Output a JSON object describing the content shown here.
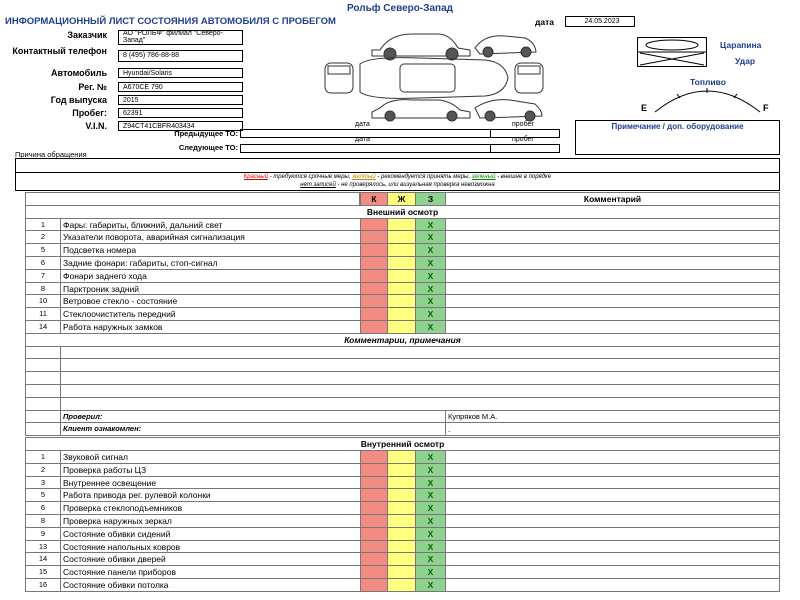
{
  "header": {
    "company": "Рольф Северо-Запад",
    "title": "ИНФОРМАЦИОННЫЙ ЛИСТ СОСТОЯНИЯ АВТОМОБИЛЯ С ПРОБЕГОМ",
    "date_label": "дата",
    "date": "24.05.2023"
  },
  "fields": [
    {
      "label": "Заказчик",
      "value": "АО \"РОЛЬФ\" филиал \"Северо-Запад\""
    },
    {
      "label": "Контактный телефон",
      "value": "8 (495) 786-88-88"
    },
    {
      "label": "Автомобиль",
      "value": "Hyundai/Solaris"
    },
    {
      "label": "Рег. №",
      "value": "А670СЕ 790"
    },
    {
      "label": "Год выпуска",
      "value": "2015"
    },
    {
      "label": "Пробег:",
      "value": "62391"
    },
    {
      "label": "V.I.N.",
      "value": "Z94CT41CBFR403434"
    }
  ],
  "service": {
    "prev_label": "Предыдущее ТО:",
    "next_label": "Следующее ТО:",
    "date_label": "дата",
    "mileage_label": "пробег"
  },
  "damage_legend": {
    "scratch": "Царапина",
    "dent": "Удар"
  },
  "fuel": {
    "label": "Топливо",
    "empty": "E",
    "full": "F"
  },
  "note_label": "Примечание / доп. оборудование",
  "reason_label": "Причина обращения",
  "legend": {
    "red": "Красный",
    "red_text": " - требуются срочные меры, ",
    "yellow": "желтый",
    "yellow_text": " - рекомендуется принять меры, ",
    "green": "зеленый",
    "green_text": " - внешне в порядке",
    "none": "нет записей",
    "none_text": " - не проверялось, или визуальная проверка невозможна"
  },
  "table": {
    "columns": [
      "К",
      "Ж",
      "З",
      "Комментарий"
    ],
    "exterior": {
      "title": "Внешний осмотр",
      "rows": [
        {
          "num": "1",
          "name": "Фары: габариты, ближний, дальний свет",
          "mark": "X"
        },
        {
          "num": "2",
          "name": "Указатели поворота, аварийная сигнализация",
          "mark": "X"
        },
        {
          "num": "5",
          "name": "Подсветка номера",
          "mark": "X"
        },
        {
          "num": "6",
          "name": "Задние фонари: габариты, стоп-сигнал",
          "mark": "X"
        },
        {
          "num": "7",
          "name": "Фонари заднего хода",
          "mark": "X"
        },
        {
          "num": "8",
          "name": "Парктроник задний",
          "mark": "X"
        },
        {
          "num": "10",
          "name": "Ветровое стекло - состояние",
          "mark": "X"
        },
        {
          "num": "11",
          "name": "Стеклоочиститель передний",
          "mark": "X"
        },
        {
          "num": "14",
          "name": "Работа наружных замков",
          "mark": "X"
        }
      ]
    },
    "comments_title": "Комментарии, примечания",
    "checked_label": "Проверил:",
    "checked_by": "Купряков М.А.",
    "client_label": "Клиент ознакомлен:",
    "client_value": ".",
    "interior": {
      "title": "Внутренний осмотр",
      "rows": [
        {
          "num": "1",
          "name": "Звуковой сигнал",
          "mark": "X"
        },
        {
          "num": "2",
          "name": "Проверка работы ЦЗ",
          "mark": "X"
        },
        {
          "num": "3",
          "name": "Внутреннее освещение",
          "mark": "X"
        },
        {
          "num": "5",
          "name": "Работа привода рег. рулевой колонки",
          "mark": "X"
        },
        {
          "num": "6",
          "name": "Проверка стеклоподъемников",
          "mark": "X"
        },
        {
          "num": "8",
          "name": "Проверка наружных зеркал",
          "mark": "X"
        },
        {
          "num": "9",
          "name": "Состояние обивки сидений",
          "mark": "X"
        },
        {
          "num": "13",
          "name": "Состояние напольных ковров",
          "mark": "X"
        },
        {
          "num": "14",
          "name": "Состояние обивки дверей",
          "mark": "X"
        },
        {
          "num": "15",
          "name": "Состояние панели приборов",
          "mark": "X"
        },
        {
          "num": "16",
          "name": "Состояние обивки потолка",
          "mark": "X"
        }
      ]
    }
  }
}
